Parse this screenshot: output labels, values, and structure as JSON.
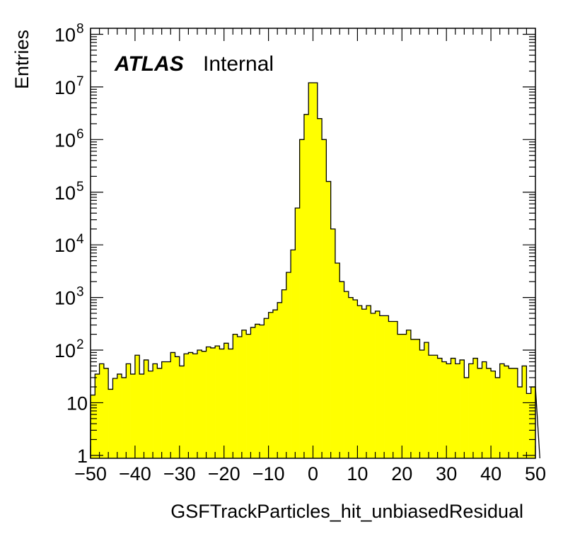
{
  "chart_data": {
    "type": "histogram",
    "xlabel": "GSFTrackParticles_hit_unbiasedResidual",
    "ylabel": "Entries",
    "xlim": [
      -50,
      50
    ],
    "ylim": [
      0.88,
      130000000
    ],
    "yscale": "log",
    "grid": false,
    "fill_color": "#ffff00",
    "line_color": "#000000",
    "bin_width": 1,
    "x_ticks": [
      "−50",
      "−40",
      "−30",
      "−20",
      "−10",
      "0",
      "10",
      "20",
      "30",
      "40",
      "50"
    ],
    "x_tick_values": [
      -50,
      -40,
      -30,
      -20,
      -10,
      0,
      10,
      20,
      30,
      40,
      50
    ],
    "y_ticks": [
      {
        "value": 1,
        "base": "1",
        "exp": ""
      },
      {
        "value": 10,
        "base": "10",
        "exp": ""
      },
      {
        "value": 100,
        "base": "10",
        "exp": "2"
      },
      {
        "value": 1000,
        "base": "10",
        "exp": "3"
      },
      {
        "value": 10000,
        "base": "10",
        "exp": "4"
      },
      {
        "value": 100000,
        "base": "10",
        "exp": "5"
      },
      {
        "value": 1000000,
        "base": "10",
        "exp": "6"
      },
      {
        "value": 10000000,
        "base": "10",
        "exp": "7"
      },
      {
        "value": 100000000,
        "base": "10",
        "exp": "8"
      }
    ],
    "bins": [
      -50,
      -49,
      -48,
      -47,
      -46,
      -45,
      -44,
      -43,
      -42,
      -41,
      -40,
      -39,
      -38,
      -37,
      -36,
      -35,
      -34,
      -33,
      -32,
      -31,
      -30,
      -29,
      -28,
      -27,
      -26,
      -25,
      -24,
      -23,
      -22,
      -21,
      -20,
      -19,
      -18,
      -17,
      -16,
      -15,
      -14,
      -13,
      -12,
      -11,
      -10,
      -9,
      -8,
      -7,
      -6,
      -5,
      -4,
      -3,
      -2,
      -1,
      0,
      1,
      2,
      3,
      4,
      5,
      6,
      7,
      8,
      9,
      10,
      11,
      12,
      13,
      14,
      15,
      16,
      17,
      18,
      19,
      20,
      21,
      22,
      23,
      24,
      25,
      26,
      27,
      28,
      29,
      30,
      31,
      32,
      33,
      34,
      35,
      36,
      37,
      38,
      39,
      40,
      41,
      42,
      43,
      44,
      45,
      46,
      47,
      48,
      49,
      50
    ],
    "values": [
      14,
      35,
      55,
      45,
      18,
      29,
      35,
      30,
      55,
      35,
      80,
      35,
      65,
      40,
      55,
      45,
      60,
      60,
      90,
      75,
      50,
      85,
      90,
      85,
      100,
      95,
      115,
      110,
      120,
      105,
      135,
      105,
      200,
      180,
      240,
      200,
      270,
      310,
      300,
      400,
      520,
      580,
      800,
      1400,
      3000,
      8000,
      50000,
      1000000,
      3000000,
      12000000,
      12000000,
      2500000,
      1000000,
      160000,
      20000,
      4500,
      2000,
      1300,
      1000,
      900,
      700,
      600,
      700,
      500,
      550,
      450,
      450,
      350,
      350,
      200,
      200,
      240,
      160,
      160,
      100,
      140,
      80,
      80,
      70,
      60,
      55,
      70,
      55,
      65,
      30,
      55,
      70,
      45,
      60,
      45,
      40,
      30,
      55,
      50,
      45,
      45,
      20,
      50,
      15,
      20
    ]
  },
  "branding": {
    "experiment": "ATLAS",
    "status": "Internal"
  }
}
